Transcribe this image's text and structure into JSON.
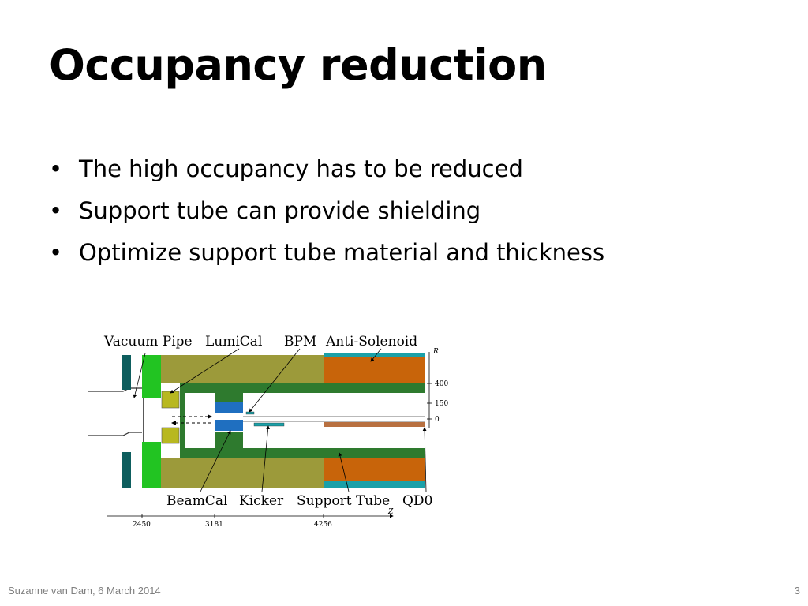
{
  "slide": {
    "title": "Occupancy reduction",
    "bullets": [
      "The high occupancy has to be reduced",
      "Support tube can provide shielding",
      "Optimize support tube material and thickness"
    ],
    "bullet_glyph": "•"
  },
  "figure": {
    "labels": {
      "vacuum_pipe": "Vacuum Pipe",
      "lumical": "LumiCal",
      "bpm": "BPM",
      "anti_solenoid": "Anti-Solenoid",
      "beamcal": "BeamCal",
      "kicker": "Kicker",
      "support_tube": "Support Tube",
      "qd0": "QD0"
    },
    "r_axis": {
      "label": "R",
      "ticks": [
        "400",
        "150",
        "0"
      ]
    },
    "z_axis": {
      "label": "Z",
      "ticks": [
        "2450",
        "3181",
        "4256"
      ]
    },
    "colors": {
      "olive": "#9c9a3a",
      "dark_green": "#2e7a2e",
      "bright_green": "#22c422",
      "orange": "#c8640a",
      "teal": "#1aa0a8",
      "dark_teal": "#0e5e5e",
      "blue": "#1f6fc0",
      "yellow_green": "#b8b820",
      "copper": "#b87040"
    }
  },
  "footer": {
    "author_date": "Suzanne van Dam, 6 March 2014",
    "page_number": "3"
  }
}
